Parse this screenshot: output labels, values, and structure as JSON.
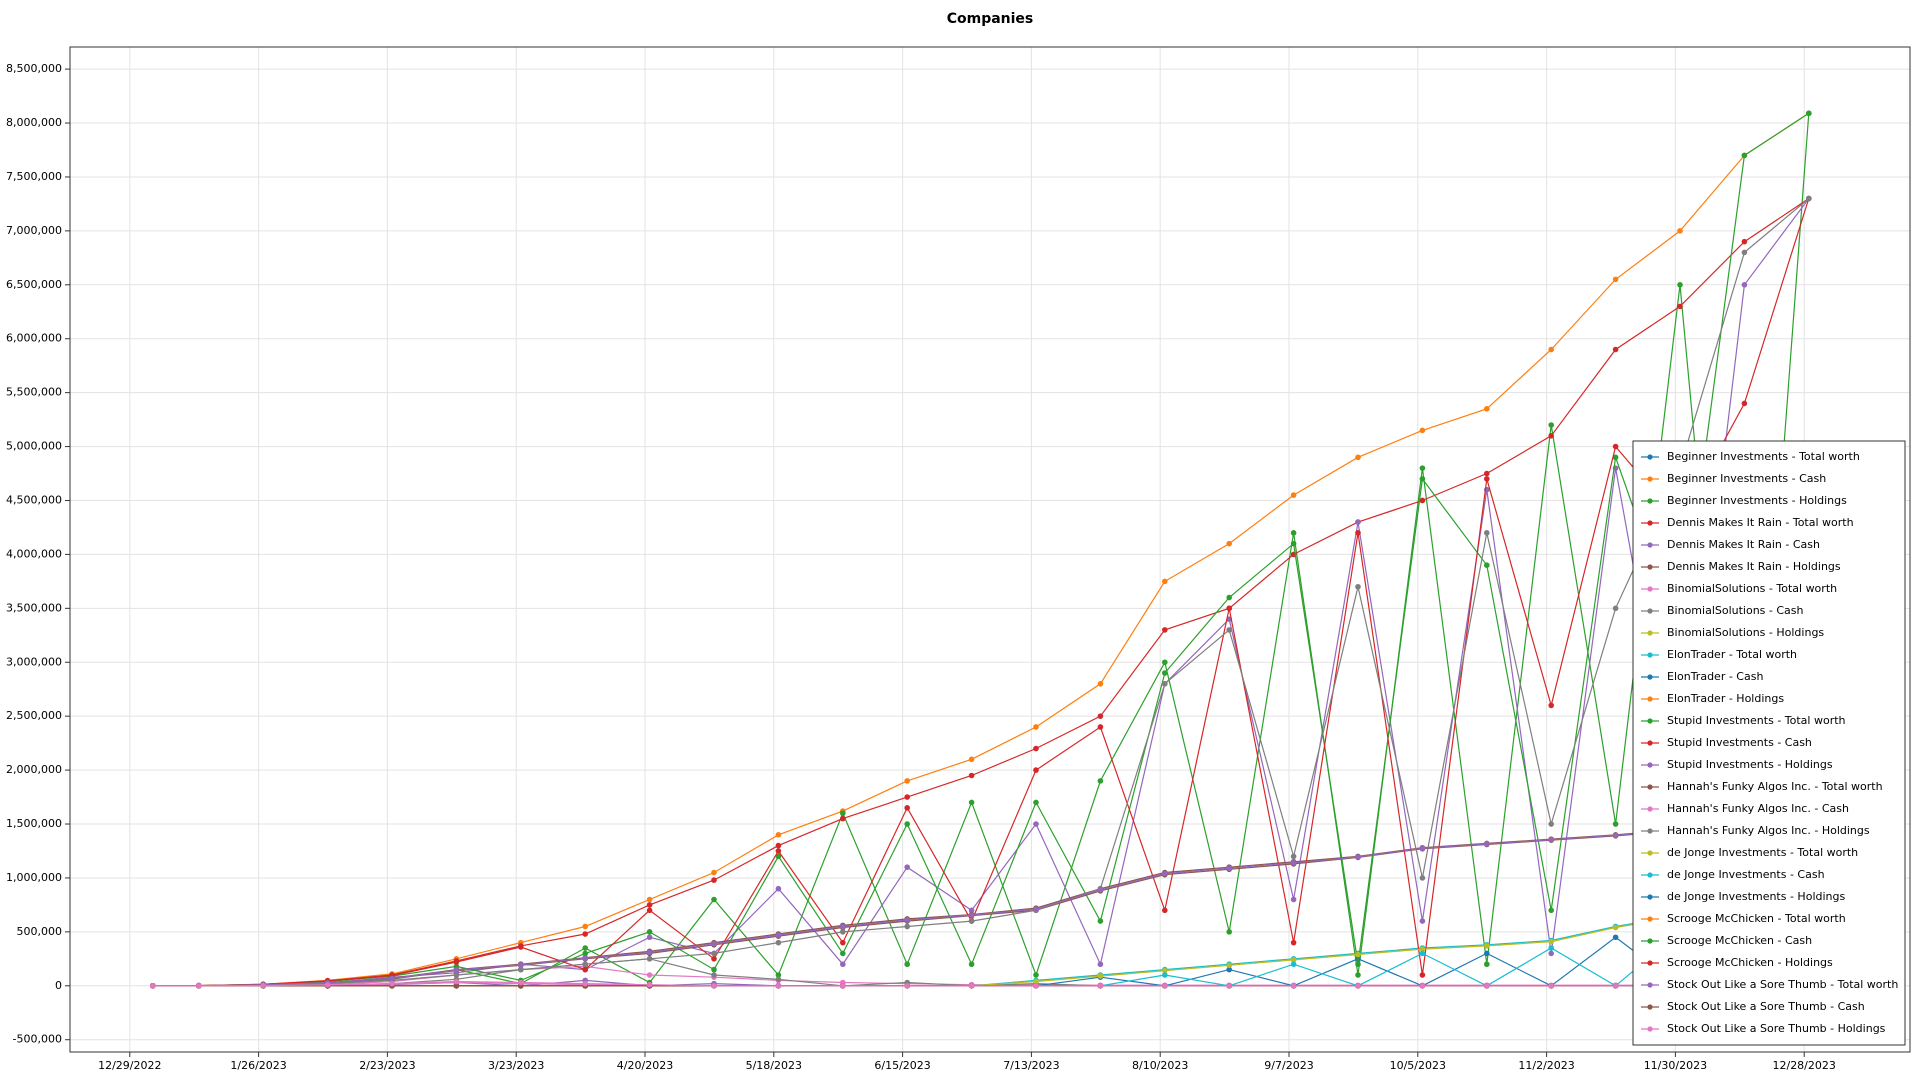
{
  "chart_data": {
    "type": "line",
    "title": "Companies",
    "x": [
      "1/3/2023",
      "1/13/2023",
      "1/27/2023",
      "2/10/2023",
      "2/24/2023",
      "3/10/2023",
      "3/24/2023",
      "4/7/2023",
      "4/21/2023",
      "5/5/2023",
      "5/19/2023",
      "6/2/2023",
      "6/16/2023",
      "6/30/2023",
      "7/14/2023",
      "7/28/2023",
      "8/11/2023",
      "8/25/2023",
      "9/8/2023",
      "9/22/2023",
      "10/6/2023",
      "10/20/2023",
      "11/3/2023",
      "11/17/2023",
      "12/1/2023",
      "12/15/2023",
      "12/29/2023"
    ],
    "xlim": [
      "12/16/2022",
      "1/20/2024"
    ],
    "xticks": [
      "12/29/2022",
      "1/26/2023",
      "2/23/2023",
      "3/23/2023",
      "4/20/2023",
      "5/18/2023",
      "6/15/2023",
      "7/13/2023",
      "8/10/2023",
      "9/7/2023",
      "10/5/2023",
      "11/2/2023",
      "11/30/2023",
      "12/28/2023"
    ],
    "ylim": [
      -614000,
      8705000
    ],
    "yticks": [
      {
        "value": -500000,
        "label": "-500,000"
      },
      0,
      {
        "value": 500000,
        "label": "500,000"
      },
      {
        "value": 1000000,
        "label": "1,000,000"
      },
      {
        "value": 1500000,
        "label": "1,500,000"
      },
      {
        "value": 2000000,
        "label": "2,000,000"
      },
      {
        "value": 2500000,
        "label": "2,500,000"
      },
      {
        "value": 3000000,
        "label": "3,000,000"
      },
      {
        "value": 3500000,
        "label": "3,500,000"
      },
      {
        "value": 4000000,
        "label": "4,000,000"
      },
      {
        "value": 4500000,
        "label": "4,500,000"
      },
      {
        "value": 5000000,
        "label": "5,000,000"
      },
      {
        "value": 5500000,
        "label": "5,500,000"
      },
      {
        "value": 6000000,
        "label": "6,000,000"
      },
      {
        "value": 6500000,
        "label": "6,500,000"
      },
      {
        "value": 7000000,
        "label": "7,000,000"
      },
      {
        "value": 7500000,
        "label": "7,500,000"
      },
      {
        "value": 8000000,
        "label": "8,000,000"
      },
      {
        "value": 8500000,
        "label": "8,500,000"
      }
    ],
    "grid": true,
    "legend": "lower right",
    "series": [
      {
        "name": "Beginner Investments - Total worth",
        "color": "#1f77b4",
        "values": [
          0,
          0,
          0,
          0,
          0,
          0,
          0,
          0,
          0,
          0,
          0,
          0,
          0,
          0,
          0,
          0,
          0,
          0,
          0,
          0,
          0,
          0,
          0,
          0,
          0,
          0,
          0
        ]
      },
      {
        "name": "Beginner Investments - Cash",
        "color": "#ff7f0e",
        "values": [
          0,
          2000,
          15000,
          50000,
          110000,
          250000,
          400000,
          550000,
          800000,
          1050000,
          1400000,
          1620000,
          1900000,
          2100000,
          2400000,
          2800000,
          3750000,
          4100000,
          4550000,
          4900000,
          5150000,
          5350000,
          5900000,
          6550000,
          7000000,
          7700000,
          8090000
        ]
      },
      {
        "name": "Beginner Investments - Holdings",
        "color": "#2ca02c",
        "values": [
          0,
          1000,
          5000,
          20000,
          60000,
          150000,
          20000,
          350000,
          30000,
          800000,
          100000,
          1600000,
          200000,
          1700000,
          100000,
          1900000,
          3000000,
          500000,
          4200000,
          100000,
          4800000,
          200000,
          5200000,
          1500000,
          6500000,
          100000,
          8090000
        ]
      },
      {
        "name": "Dennis Makes It Rain - Total worth",
        "color": "#d62728",
        "values": [
          0,
          2000,
          14000,
          45000,
          100000,
          230000,
          370000,
          480000,
          750000,
          980000,
          1300000,
          1550000,
          1750000,
          1950000,
          2200000,
          2500000,
          3300000,
          3500000,
          4000000,
          4300000,
          4500000,
          4750000,
          5100000,
          5900000,
          6300000,
          6900000,
          7300000
        ]
      },
      {
        "name": "Dennis Makes It Rain - Cash",
        "color": "#9467bd",
        "values": [
          0,
          1000,
          8000,
          25000,
          80000,
          120000,
          200000,
          150000,
          450000,
          300000,
          900000,
          200000,
          1100000,
          700000,
          1500000,
          200000,
          2800000,
          3400000,
          800000,
          4300000,
          600000,
          4600000,
          300000,
          4800000,
          1500000,
          6500000,
          7300000
        ]
      },
      {
        "name": "Dennis Makes It Rain - Holdings",
        "color": "#8c564b",
        "values": [
          0,
          1000,
          10000,
          30000,
          70000,
          150000,
          200000,
          260000,
          320000,
          400000,
          480000,
          560000,
          620000,
          660000,
          720000,
          900000,
          1050000,
          1100000,
          1150000,
          1200000,
          1280000,
          1320000,
          1360000,
          1400000,
          1450000,
          1490000,
          1500000
        ]
      },
      {
        "name": "BinomialSolutions - Total worth",
        "color": "#e377c2",
        "values": [
          0,
          0,
          2000,
          10000,
          40000,
          100000,
          150000,
          180000,
          100000,
          80000,
          50000,
          30000,
          20000,
          10000,
          10000,
          5000,
          5000,
          5000,
          5000,
          5000,
          5000,
          5000,
          5000,
          5000,
          5000,
          5000,
          5000
        ]
      },
      {
        "name": "BinomialSolutions - Cash",
        "color": "#7f7f7f",
        "values": [
          0,
          0,
          0,
          5000,
          20000,
          60000,
          150000,
          200000,
          250000,
          100000,
          60000,
          0,
          30000,
          0,
          20000,
          0,
          0,
          0,
          0,
          0,
          0,
          0,
          0,
          0,
          0,
          0,
          0
        ]
      },
      {
        "name": "BinomialSolutions - Holdings",
        "color": "#bcbd22",
        "values": [
          0,
          0,
          0,
          0,
          0,
          0,
          0,
          0,
          0,
          0,
          0,
          0,
          0,
          0,
          0,
          0,
          0,
          0,
          0,
          0,
          0,
          0,
          0,
          0,
          0,
          0,
          0
        ]
      },
      {
        "name": "ElonTrader - Total worth",
        "color": "#17becf",
        "values": [
          0,
          0,
          0,
          0,
          0,
          0,
          0,
          0,
          0,
          0,
          0,
          0,
          0,
          0,
          50000,
          100000,
          150000,
          200000,
          250000,
          300000,
          350000,
          380000,
          420000,
          550000,
          650000,
          700000,
          720000
        ]
      },
      {
        "name": "ElonTrader - Cash",
        "color": "#1f77b4",
        "values": [
          0,
          0,
          0,
          0,
          0,
          0,
          0,
          0,
          0,
          0,
          0,
          0,
          0,
          0,
          0,
          80000,
          0,
          150000,
          0,
          250000,
          0,
          300000,
          0,
          450000,
          0,
          600000,
          0
        ]
      },
      {
        "name": "ElonTrader - Holdings",
        "color": "#ff7f0e",
        "values": [
          0,
          0,
          0,
          0,
          0,
          0,
          0,
          0,
          0,
          0,
          0,
          0,
          0,
          0,
          0,
          0,
          0,
          0,
          0,
          0,
          0,
          0,
          0,
          0,
          0,
          0,
          0
        ]
      },
      {
        "name": "Stupid Investments - Total worth",
        "color": "#2ca02c",
        "values": [
          0,
          2000,
          12000,
          40000,
          90000,
          180000,
          50000,
          300000,
          500000,
          150000,
          1200000,
          300000,
          1500000,
          200000,
          1700000,
          600000,
          2900000,
          3600000,
          4100000,
          200000,
          4700000,
          3900000,
          700000,
          4900000,
          3200000,
          7700000,
          8090000
        ]
      },
      {
        "name": "Stupid Investments - Cash",
        "color": "#d62728",
        "values": [
          0,
          2000,
          13000,
          45000,
          95000,
          220000,
          360000,
          150000,
          700000,
          250000,
          1250000,
          400000,
          1650000,
          600000,
          2000000,
          2400000,
          700000,
          3500000,
          400000,
          4200000,
          100000,
          4700000,
          2600000,
          5000000,
          4300000,
          5400000,
          7300000
        ]
      },
      {
        "name": "Stupid Investments - Holdings",
        "color": "#9467bd",
        "values": [
          0,
          0,
          0,
          0,
          10000,
          30000,
          0,
          50000,
          0,
          20000,
          0,
          0,
          0,
          0,
          0,
          0,
          0,
          0,
          0,
          0,
          0,
          0,
          0,
          0,
          0,
          0,
          0
        ]
      },
      {
        "name": "Hannah's Funky Algos Inc. - Total worth",
        "color": "#8c564b",
        "values": [
          0,
          800,
          9000,
          28000,
          65000,
          140000,
          190000,
          250000,
          300000,
          380000,
          460000,
          540000,
          600000,
          650000,
          700000,
          880000,
          1030000,
          1080000,
          1130000,
          1190000,
          1270000,
          1310000,
          1350000,
          1390000,
          1440000,
          1480000,
          1500000
        ]
      },
      {
        "name": "Hannah's Funky Algos Inc. - Cash",
        "color": "#e377c2",
        "values": [
          0,
          0,
          1000,
          5000,
          15000,
          30000,
          20000,
          10000,
          0,
          0,
          0,
          0,
          0,
          0,
          0,
          0,
          0,
          0,
          0,
          0,
          0,
          0,
          0,
          0,
          0,
          0,
          0
        ]
      },
      {
        "name": "Hannah's Funky Algos Inc. - Holdings",
        "color": "#7f7f7f",
        "values": [
          0,
          500,
          5000,
          20000,
          50000,
          100000,
          150000,
          200000,
          250000,
          300000,
          400000,
          500000,
          550000,
          600000,
          700000,
          900000,
          2800000,
          3300000,
          1200000,
          3700000,
          1000000,
          4200000,
          1500000,
          3500000,
          4800000,
          6800000,
          7300000
        ]
      },
      {
        "name": "de Jonge Investments - Total worth",
        "color": "#bcbd22",
        "values": [
          0,
          0,
          0,
          0,
          0,
          0,
          0,
          0,
          0,
          0,
          0,
          0,
          0,
          0,
          40000,
          90000,
          140000,
          190000,
          240000,
          290000,
          340000,
          370000,
          410000,
          540000,
          640000,
          690000,
          710000
        ]
      },
      {
        "name": "de Jonge Investments - Cash",
        "color": "#17becf",
        "values": [
          0,
          0,
          0,
          0,
          0,
          0,
          0,
          0,
          0,
          0,
          0,
          0,
          0,
          0,
          0,
          0,
          100000,
          0,
          200000,
          0,
          300000,
          0,
          350000,
          0,
          500000,
          0,
          650000
        ]
      },
      {
        "name": "de Jonge Investments - Holdings",
        "color": "#1f77b4",
        "values": [
          0,
          0,
          0,
          0,
          0,
          0,
          0,
          0,
          0,
          0,
          0,
          0,
          0,
          0,
          0,
          0,
          0,
          0,
          0,
          0,
          0,
          0,
          0,
          0,
          0,
          0,
          0
        ]
      },
      {
        "name": "Scrooge McChicken - Total worth",
        "color": "#ff7f0e",
        "values": [
          0,
          0,
          0,
          0,
          0,
          0,
          0,
          0,
          0,
          0,
          0,
          0,
          0,
          0,
          0,
          0,
          0,
          0,
          0,
          0,
          0,
          0,
          0,
          0,
          0,
          0,
          0
        ]
      },
      {
        "name": "Scrooge McChicken - Cash",
        "color": "#2ca02c",
        "values": [
          0,
          0,
          0,
          0,
          0,
          0,
          0,
          0,
          0,
          0,
          0,
          0,
          0,
          0,
          0,
          0,
          0,
          0,
          0,
          0,
          0,
          0,
          0,
          0,
          0,
          0,
          0
        ]
      },
      {
        "name": "Scrooge McChicken - Holdings",
        "color": "#d62728",
        "values": [
          0,
          0,
          0,
          0,
          0,
          0,
          0,
          0,
          0,
          0,
          0,
          0,
          0,
          0,
          0,
          0,
          0,
          0,
          0,
          0,
          0,
          0,
          0,
          0,
          0,
          0,
          0
        ]
      },
      {
        "name": "Stock Out Like a Sore Thumb - Total worth",
        "color": "#9467bd",
        "values": [
          0,
          900,
          9500,
          29000,
          68000,
          145000,
          195000,
          255000,
          310000,
          390000,
          470000,
          550000,
          610000,
          655000,
          710000,
          890000,
          1040000,
          1090000,
          1140000,
          1195000,
          1275000,
          1315000,
          1355000,
          1395000,
          1445000,
          1485000,
          1500000
        ]
      },
      {
        "name": "Stock Out Like a Sore Thumb - Cash",
        "color": "#8c564b",
        "values": [
          0,
          0,
          0,
          0,
          0,
          0,
          0,
          0,
          0,
          0,
          0,
          0,
          0,
          0,
          0,
          0,
          0,
          0,
          0,
          0,
          0,
          0,
          0,
          0,
          0,
          0,
          0
        ]
      },
      {
        "name": "Stock Out Like a Sore Thumb - Holdings",
        "color": "#e377c2",
        "values": [
          0,
          0,
          2000,
          8000,
          20000,
          40000,
          30000,
          20000,
          10000,
          0,
          0,
          0,
          0,
          0,
          0,
          0,
          0,
          0,
          0,
          0,
          0,
          0,
          0,
          0,
          0,
          0,
          0
        ]
      }
    ]
  }
}
